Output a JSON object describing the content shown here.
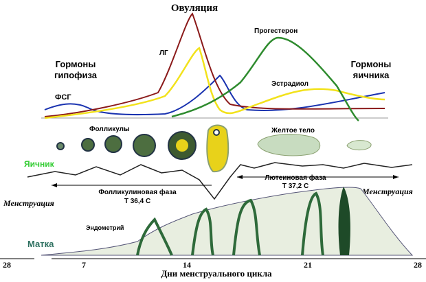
{
  "title": "Овуляция",
  "hormones": {
    "pituitary": [
      "Гормоны",
      "гипофиза"
    ],
    "ovary": [
      "Гормоны",
      "яичника"
    ],
    "fsh": "ФСГ",
    "lh": "ЛГ",
    "progesterone": "Прогестерон",
    "estradiol": "Эстрадиол"
  },
  "ovary": {
    "label": "Яичник",
    "follicles": "Фолликулы",
    "corpus_luteum": "Желтое тело",
    "luteal_phase": [
      "Лютеиновая фаза",
      "Т 37,2 С"
    ],
    "follicular_phase": [
      "Фолликулиновая фаза",
      "Т 36,4 С"
    ]
  },
  "menstruation_left": "Менструация",
  "menstruation_right": "Менструация",
  "uterus": {
    "label": "Матка",
    "endometrium": "Эндометрий"
  },
  "axis": {
    "days": [
      "28",
      "7",
      "14",
      "21",
      "28"
    ],
    "title": "Дни менструального цикла"
  }
}
